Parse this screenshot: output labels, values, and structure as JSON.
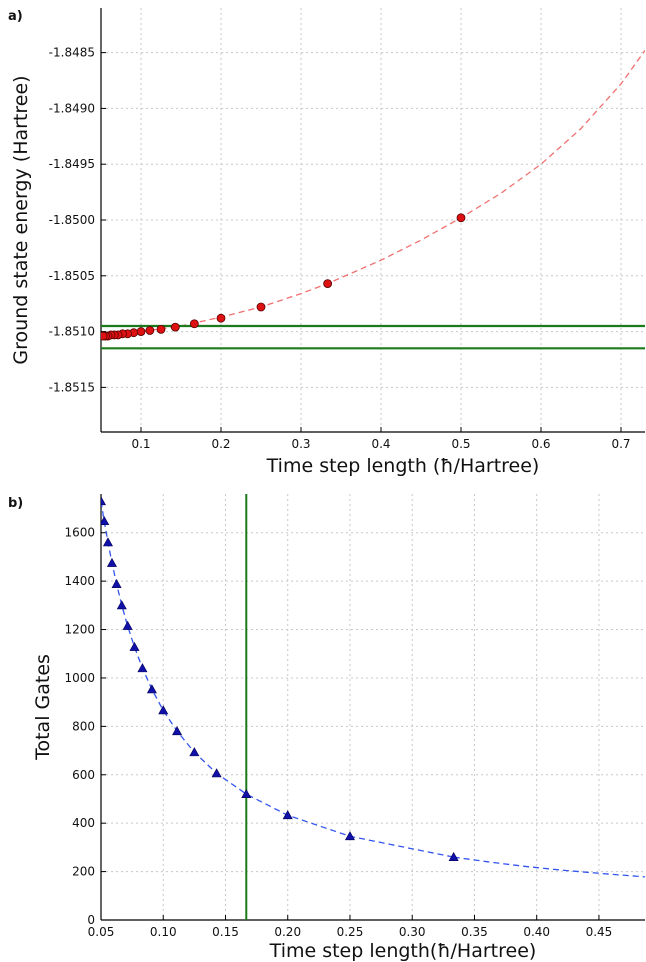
{
  "chart_data": [
    {
      "panel_label": "a)",
      "type": "scatter",
      "xlabel": "Time step length (ħ/Hartree)",
      "ylabel": "Ground state energy (Hartree)",
      "xlim": [
        0.05,
        0.73
      ],
      "ylim": [
        -1.8519,
        -1.8481
      ],
      "xticks": [
        0.1,
        0.2,
        0.3,
        0.4,
        0.5,
        0.6,
        0.7
      ],
      "xtick_labels": [
        "0.1",
        "0.2",
        "0.3",
        "0.4",
        "0.5",
        "0.6",
        "0.7"
      ],
      "yticks": [
        -1.8485,
        -1.849,
        -1.8495,
        -1.85,
        -1.8505,
        -1.851,
        -1.8515
      ],
      "ytick_labels": [
        "-1.8485",
        "-1.8490",
        "-1.8495",
        "-1.8500",
        "-1.8505",
        "-1.8510",
        "-1.8515"
      ],
      "grid": true,
      "series": [
        {
          "marker": "circle",
          "color": "#dd1111",
          "x": [
            0.5,
            0.3333,
            0.25,
            0.2,
            0.1667,
            0.1429,
            0.125,
            0.1111,
            0.1,
            0.0909,
            0.0833,
            0.0769,
            0.0714,
            0.0667,
            0.0625,
            0.0588,
            0.0556,
            0.0526
          ],
          "y": [
            -1.84998,
            -1.85057,
            -1.85078,
            -1.85088,
            -1.85093,
            -1.85096,
            -1.85098,
            -1.85099,
            -1.851,
            -1.85101,
            -1.85102,
            -1.85102,
            -1.85103,
            -1.85103,
            -1.85103,
            -1.85104,
            -1.85104,
            -1.85104
          ]
        }
      ],
      "fit_curve": {
        "style": "dashed",
        "color": "#f07070",
        "x": [
          0.05,
          0.1,
          0.15,
          0.2,
          0.25,
          0.3,
          0.3333,
          0.4,
          0.45,
          0.5,
          0.55,
          0.6,
          0.65,
          0.7,
          0.73
        ],
        "y": [
          -1.85105,
          -1.851,
          -1.85095,
          -1.85087,
          -1.85078,
          -1.85066,
          -1.85057,
          -1.85036,
          -1.85018,
          -1.84998,
          -1.84976,
          -1.8495,
          -1.84918,
          -1.84878,
          -1.84848
        ]
      },
      "hlines": {
        "color": "#1b7a1b",
        "y": [
          -1.85095,
          -1.85115
        ]
      }
    },
    {
      "panel_label": "b)",
      "type": "line",
      "xlabel": "Time step length(ħ/Hartree)",
      "ylabel": "Total Gates",
      "xlim": [
        0.05,
        0.487
      ],
      "ylim": [
        0,
        1760
      ],
      "xticks": [
        0.05,
        0.1,
        0.15,
        0.2,
        0.25,
        0.3,
        0.35,
        0.4,
        0.45
      ],
      "xtick_labels": [
        "0.05",
        "0.10",
        "0.15",
        "0.20",
        "0.25",
        "0.30",
        "0.35",
        "0.40",
        "0.45"
      ],
      "yticks": [
        0,
        200,
        400,
        600,
        800,
        1000,
        1200,
        1400,
        1600
      ],
      "ytick_labels": [
        "0",
        "200",
        "400",
        "600",
        "800",
        "1000",
        "1200",
        "1400",
        "1600"
      ],
      "grid": true,
      "series": [
        {
          "marker": "triangle",
          "line": "dashed",
          "color": "#1111aa",
          "x": [
            0.05,
            0.0526,
            0.0556,
            0.0588,
            0.0625,
            0.0667,
            0.0714,
            0.0769,
            0.0833,
            0.0909,
            0.1,
            0.1111,
            0.125,
            0.1429,
            0.1667,
            0.2,
            0.25,
            0.3333
          ],
          "y": [
            1730,
            1648,
            1560,
            1475,
            1388,
            1300,
            1215,
            1128,
            1040,
            953,
            866,
            780,
            693,
            606,
            520,
            433,
            346,
            260
          ]
        }
      ],
      "fit_curve": {
        "style": "dashed",
        "color": "#3355ee",
        "x": [
          0.3333,
          0.36,
          0.39,
          0.42,
          0.45,
          0.487
        ],
        "y": [
          260,
          241,
          222,
          206,
          193,
          178
        ]
      },
      "vlines": {
        "color": "#1b7a1b",
        "x": [
          0.1667
        ]
      }
    }
  ]
}
